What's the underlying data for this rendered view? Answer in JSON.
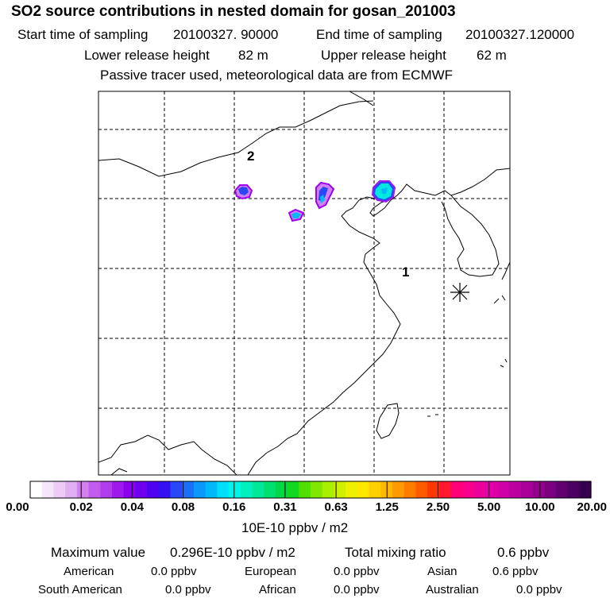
{
  "header": {
    "title": "SO2 source contributions in nested domain for gosan_201003",
    "start_label": "Start time of sampling",
    "start_value": "20100327. 90000",
    "end_label": "End time of sampling",
    "end_value": "20100327.120000",
    "lower_label": "Lower release height",
    "lower_value": "82 m",
    "upper_label": "Upper release height",
    "upper_value": "62 m",
    "note": "Passive tracer used, meteorological data are from ECMWF"
  },
  "map": {
    "labels": [
      {
        "text": "1",
        "name": "source-label-1"
      },
      {
        "text": "2",
        "name": "source-label-2"
      }
    ],
    "receptor_icon": "asterisk-receptor-icon"
  },
  "colorbar": {
    "tick_labels": [
      "0.00",
      "0.02",
      "0.04",
      "0.08",
      "0.16",
      "0.31",
      "0.63",
      "1.25",
      "2.50",
      "5.00",
      "10.00",
      "20.00"
    ],
    "colors": [
      "#ffffff",
      "#f5e6fb",
      "#ecccf7",
      "#e0b0f3",
      "#d280f0",
      "#c35cec",
      "#b03cec",
      "#9f18ec",
      "#8a00ee",
      "#6e00f0",
      "#5000f2",
      "#3410f5",
      "#2848f7",
      "#1870f8",
      "#0a98fa",
      "#00b8fa",
      "#00e0fa",
      "#00f5e8",
      "#00f0c0",
      "#00e898",
      "#00e070",
      "#00d848",
      "#10d820",
      "#50e000",
      "#80e800",
      "#a8f000",
      "#d0f000",
      "#eef000",
      "#ffe800",
      "#ffd000",
      "#ffb800",
      "#ff9a00",
      "#ff7c00",
      "#ff5a00",
      "#ff3800",
      "#ff1830",
      "#ff0078",
      "#f8008c",
      "#ec009c",
      "#e000a6",
      "#d000a6",
      "#bc00a0",
      "#a80098",
      "#92008c",
      "#7a0080",
      "#620070",
      "#4a0060",
      "#360050"
    ],
    "unit": "10E-10 ppbv / m2"
  },
  "summary": {
    "max_label": "Maximum value",
    "max_value": "0.296E-10 ppbv / m2",
    "total_label": "Total mixing ratio",
    "total_value": "0.6 ppbv",
    "regions": [
      {
        "name": "American",
        "value": "0.0 ppbv"
      },
      {
        "name": "European",
        "value": "0.0 ppbv"
      },
      {
        "name": "Asian",
        "value": "0.6 ppbv"
      },
      {
        "name": "South American",
        "value": "0.0 ppbv"
      },
      {
        "name": "African",
        "value": "0.0 ppbv"
      },
      {
        "name": "Australian",
        "value": "0.0 ppbv"
      }
    ]
  },
  "chart_data": {
    "type": "heatmap",
    "title": "SO2 source contributions in nested domain for gosan_201003",
    "xlabel": "",
    "ylabel": "",
    "grid": true,
    "colorbar_levels": [
      0.0,
      0.02,
      0.04,
      0.08,
      0.16,
      0.31,
      0.63,
      1.25,
      2.5,
      5.0,
      10.0,
      20.0
    ],
    "colorbar_unit": "10E-10 ppbv / m2",
    "source_blobs": [
      {
        "name": "north-china-west",
        "peak_level": 0.16
      },
      {
        "name": "north-china-center",
        "peak_level": 0.08
      },
      {
        "name": "north-china-east",
        "peak_level": 0.16
      },
      {
        "name": "bohai-coast",
        "peak_level": 0.31
      }
    ]
  }
}
